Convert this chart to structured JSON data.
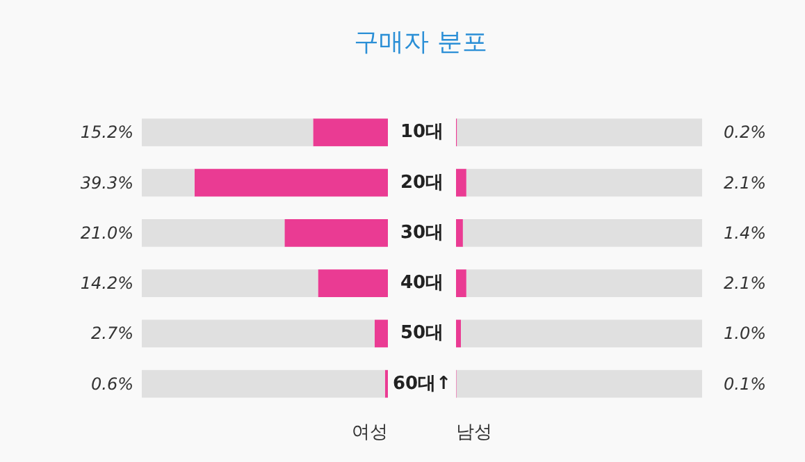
{
  "chart_data": [
    {
      "type": "bar",
      "orientation": "horizontal",
      "stacked": true,
      "title": "구매자 분포",
      "categories": [
        "10대",
        "20대",
        "30대",
        "40대",
        "50대",
        "60대↑"
      ],
      "xlim": [
        50,
        0
      ],
      "series": [
        {
          "name": "여성",
          "color": "#ea3b93",
          "values": [
            15.2,
            39.3,
            21.0,
            14.2,
            2.7,
            0.6
          ],
          "value_labels": [
            "15.2%",
            "39.3%",
            "21.0%",
            "14.2%",
            "2.7%",
            "0.6%"
          ]
        },
        {
          "color": "#e0e0e0",
          "values": [
            34.8,
            10.7,
            29.0,
            35.8,
            47.3,
            49.4
          ]
        }
      ]
    },
    {
      "type": "bar",
      "orientation": "horizontal",
      "stacked": true,
      "categories": [
        null,
        null,
        null,
        null,
        null,
        null
      ],
      "xlim": [
        0,
        50
      ],
      "series": [
        {
          "name": "남성",
          "color": "#ea3b93",
          "values": [
            0.2,
            2.1,
            1.4,
            2.1,
            1.0,
            0.1
          ],
          "value_labels": [
            "0.2%",
            "2.1%",
            "1.4%",
            "2.1%",
            "1.0%",
            "0.1%"
          ]
        },
        {
          "color": "#e0e0e0",
          "values": [
            49.8,
            47.9,
            48.6,
            47.9,
            49.0,
            49.9
          ]
        }
      ]
    }
  ]
}
